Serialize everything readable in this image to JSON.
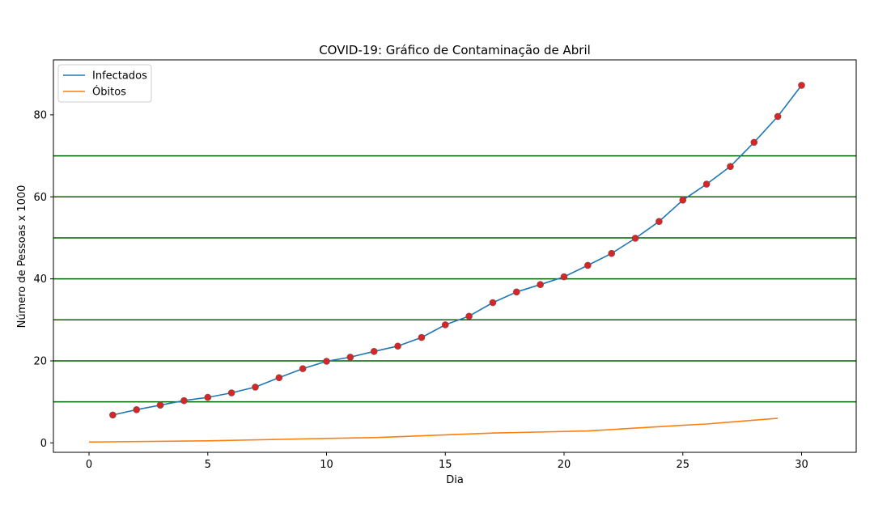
{
  "chart_data": {
    "type": "line",
    "title": "COVID-19: Gráfico de Contaminação de Abril",
    "xlabel": "Dia",
    "ylabel": "Número de Pessoas x 1000",
    "xlim": [
      -1.5,
      32.3
    ],
    "ylim": [
      -2.3,
      93.4
    ],
    "xticks": [
      "0",
      "5",
      "10",
      "15",
      "20",
      "25",
      "30"
    ],
    "yticks": [
      "0",
      "20",
      "40",
      "60",
      "80"
    ],
    "hlines": [
      10,
      20,
      30,
      40,
      50,
      60,
      70
    ],
    "hline_color": "#006400",
    "marker_color": "#d62728",
    "legend_placement": "upper-left",
    "series": [
      {
        "name": "Infectados",
        "color": "#1f77b4",
        "markers": true,
        "x": [
          1,
          2,
          3,
          4,
          5,
          6,
          7,
          8,
          9,
          10,
          11,
          12,
          13,
          14,
          15,
          16,
          17,
          18,
          19,
          20,
          21,
          22,
          23,
          24,
          25,
          26,
          27,
          28,
          29,
          30
        ],
        "y": [
          6.8,
          8.1,
          9.2,
          10.3,
          11.1,
          12.2,
          13.6,
          15.9,
          18.1,
          19.9,
          20.9,
          22.3,
          23.6,
          25.7,
          28.8,
          30.9,
          34.2,
          36.8,
          38.6,
          40.5,
          43.3,
          46.2,
          49.9,
          54.0,
          59.2,
          63.1,
          67.4,
          73.3,
          79.6,
          87.2
        ]
      },
      {
        "name": "Óbitos",
        "color": "#ff7f0e",
        "markers": false,
        "x": [
          0,
          5,
          10,
          12,
          17,
          21,
          25,
          26,
          29
        ],
        "y": [
          0.2,
          0.5,
          1.1,
          1.3,
          2.4,
          2.9,
          4.3,
          4.6,
          6.0
        ]
      }
    ]
  }
}
